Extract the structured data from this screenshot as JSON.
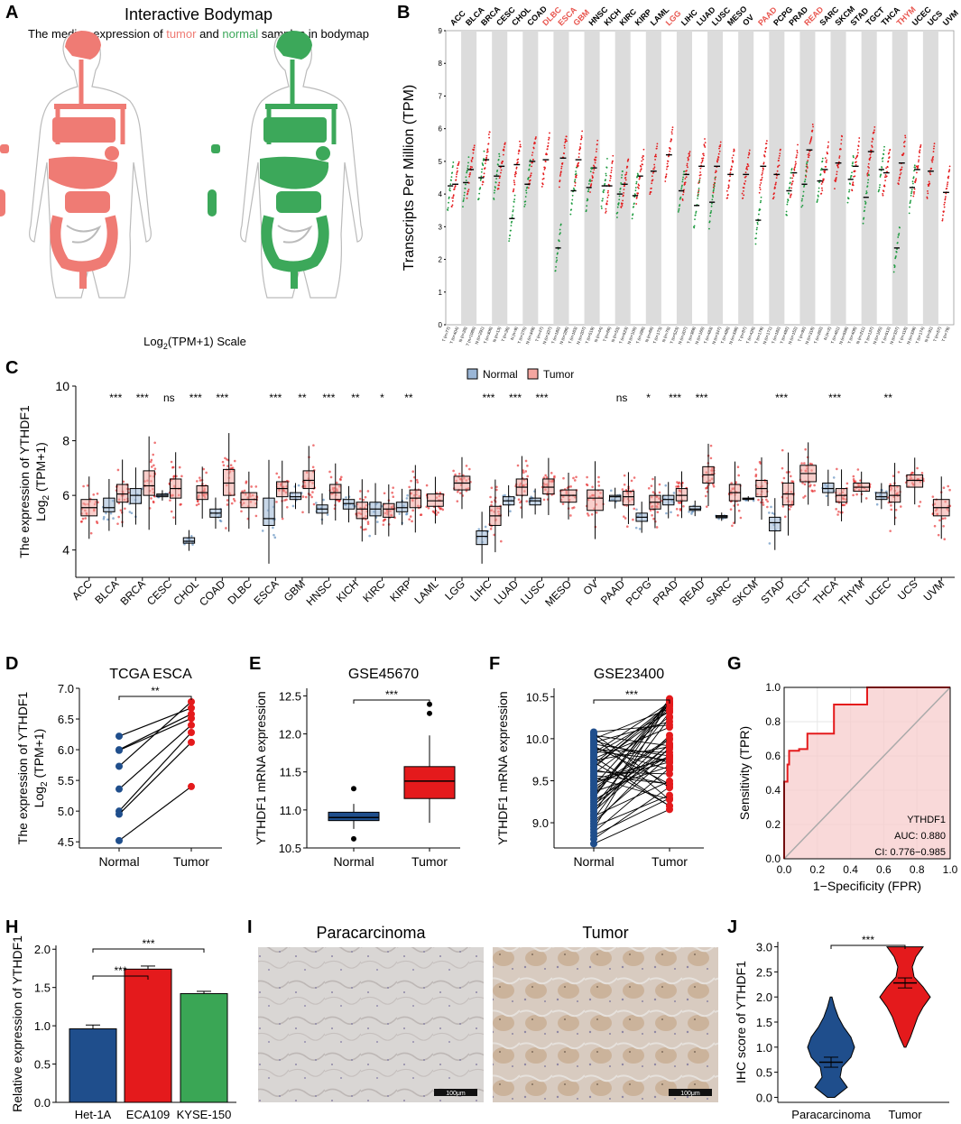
{
  "figure": {
    "panel_labels": [
      "A",
      "B",
      "C",
      "D",
      "E",
      "F",
      "G",
      "H",
      "I",
      "J"
    ]
  },
  "colors": {
    "normal": "#1f4e8c",
    "tumor": "#e41a1c",
    "green": "#3aa655",
    "body_red": "#ef7b74",
    "body_green": "#3ca85a",
    "grey": "#d9d9d9"
  },
  "bodymap": {
    "title": "Interactive Bodymap",
    "subtitle_parts": [
      "The median expression of ",
      "tumor",
      " and ",
      "normal",
      " samples in bodymap"
    ],
    "scale_label_main": "Log",
    "scale_label_sub": "2",
    "scale_label_rest": "(TPM+1) Scale"
  },
  "chart_data": [
    {
      "id": "B",
      "type": "scatter",
      "title": "",
      "ylabel": "Transcripts Per Million (TPM)",
      "ylim": [
        0,
        9
      ],
      "yticks": [
        0,
        1,
        2,
        3,
        4,
        5,
        6,
        7,
        8,
        9
      ],
      "cancers": [
        "ACC",
        "BLCA",
        "BRCA",
        "CESC",
        "CHOL",
        "COAD",
        "DLBC",
        "ESCA",
        "GBM",
        "HNSC",
        "KICH",
        "KIRC",
        "KIRP",
        "LAML",
        "LGG",
        "LIHC",
        "LUAD",
        "LUSC",
        "MESO",
        "OV",
        "PAAD",
        "PCPG",
        "PRAD",
        "READ",
        "SARC",
        "SKCM",
        "STAD",
        "TGCT",
        "THCA",
        "THYM",
        "UCEC",
        "UCS",
        "UVM"
      ],
      "highlighted": [
        "DLBC",
        "ESCA",
        "GBM",
        "LGG",
        "PAAD",
        "READ",
        "THYM"
      ],
      "tumor_median": [
        4.3,
        4.75,
        5.05,
        4.85,
        4.9,
        5.0,
        5.05,
        5.1,
        5.05,
        4.8,
        4.25,
        4.3,
        4.55,
        4.7,
        5.2,
        4.6,
        4.85,
        4.85,
        4.6,
        4.6,
        4.85,
        4.6,
        4.65,
        5.35,
        4.75,
        4.95,
        4.85,
        5.3,
        4.65,
        4.95,
        4.75,
        4.7,
        4.05
      ],
      "normal_median": [
        4.25,
        4.35,
        4.5,
        4.55,
        3.25,
        4.3,
        null,
        2.35,
        4.1,
        4.2,
        4.25,
        4.0,
        3.95,
        null,
        null,
        4.1,
        3.65,
        3.75,
        null,
        null,
        3.2,
        null,
        4.1,
        4.3,
        4.4,
        null,
        4.45,
        3.9,
        4.75,
        2.35,
        4.2,
        null,
        null
      ],
      "xtick_counts": [
        "T (n=77)",
        "T (n=404)",
        "N (n=28)",
        "T (n=1085)",
        "N (n=291)",
        "T (n=306)",
        "N (n=13)",
        "T (n=36)",
        "N (n=9)",
        "T (n=275)",
        "N (n=349)",
        "T (n=47)",
        "N (n=337)",
        "T (n=182)",
        "N (n=286)",
        "T (n=163)",
        "N (n=207)",
        "T (n=519)",
        "N (n=44)",
        "T (n=66)",
        "N (n=53)",
        "T (n=523)",
        "N (n=100)",
        "T (n=286)",
        "N (n=60)",
        "T (n=173)",
        "N (n=70)",
        "T (n=523)",
        "N (n=207)",
        "T (n=369)",
        "N (n=160)",
        "T (n=483)",
        "N (n=347)",
        "T (n=486)",
        "N (n=338)",
        "T (n=87)",
        "T (n=426)",
        "T (n=179)",
        "N (n=171)",
        "T (n=182)",
        "T (n=492)",
        "N (n=152)",
        "T (n=92)",
        "N (n=318)",
        "T (n=262)",
        "N (n=2)",
        "T (n=461)",
        "N (n=558)",
        "T (n=408)",
        "N (n=211)",
        "T (n=137)",
        "N (n=165)",
        "T (n=512)",
        "N (n=337)",
        "T (n=118)",
        "N (n=339)",
        "T (n=174)",
        "N (n=91)",
        "T (n=57)",
        "T (n=79)"
      ]
    },
    {
      "id": "C",
      "type": "box",
      "ylabel_line1": "The expression of YTHDF1",
      "ylabel_line2_main": "Log",
      "ylabel_line2_sub": "2",
      "ylabel_line2_rest": " (TPM+1)",
      "legend": [
        "Normal",
        "Tumor"
      ],
      "ylim": [
        3,
        10
      ],
      "yticks": [
        4,
        6,
        8,
        10
      ],
      "categories": [
        "ACC",
        "BLCA",
        "BRCA",
        "CESC",
        "CHOL",
        "COAD",
        "DLBC",
        "ESCA",
        "GBM",
        "HNSC",
        "KICH",
        "KIRC",
        "KIRP",
        "LAML",
        "LGG",
        "LIHC",
        "LUAD",
        "LUSC",
        "MESO",
        "OV",
        "PAAD",
        "PCPG",
        "PRAD",
        "READ",
        "SARC",
        "SKCM",
        "STAD",
        "TGCT",
        "THCA",
        "THYM",
        "UCEC",
        "UCS",
        "UVM"
      ],
      "significance": [
        "",
        "***",
        "***",
        "ns",
        "***",
        "***",
        "",
        "***",
        "**",
        "***",
        "**",
        "*",
        "**",
        "",
        "",
        "***",
        "***",
        "***",
        "",
        "",
        "ns",
        "*",
        "***",
        "***",
        "",
        "",
        "***",
        "",
        "***",
        "",
        "**",
        "",
        ""
      ],
      "normal_box": [
        null,
        [
          5.4,
          5.55,
          5.9
        ],
        [
          5.7,
          6.0,
          6.25
        ],
        [
          5.95,
          6.0,
          6.05
        ],
        [
          4.25,
          4.32,
          4.45
        ],
        [
          5.2,
          5.35,
          5.5
        ],
        null,
        [
          4.9,
          5.15,
          5.9
        ],
        [
          5.85,
          5.95,
          6.1
        ],
        [
          5.35,
          5.5,
          5.65
        ],
        [
          5.5,
          5.7,
          5.85
        ],
        [
          5.25,
          5.5,
          5.75
        ],
        [
          5.4,
          5.55,
          5.75
        ],
        null,
        null,
        [
          4.2,
          4.5,
          4.7
        ],
        [
          5.65,
          5.8,
          5.95
        ],
        [
          5.65,
          5.8,
          5.9
        ],
        null,
        null,
        [
          5.8,
          5.95,
          6.0
        ],
        [
          5.05,
          5.2,
          5.35
        ],
        [
          5.65,
          5.85,
          6.0
        ],
        [
          5.45,
          5.5,
          5.6
        ],
        [
          5.18,
          5.22,
          5.26
        ],
        [
          5.85,
          5.88,
          5.9
        ],
        [
          4.7,
          5.0,
          5.2
        ],
        null,
        [
          6.1,
          6.25,
          6.45
        ],
        null,
        [
          5.85,
          5.95,
          6.1
        ],
        null,
        null
      ],
      "tumor_box": [
        [
          5.25,
          5.55,
          5.85
        ],
        [
          5.75,
          6.05,
          6.4
        ],
        [
          6.0,
          6.35,
          6.9
        ],
        [
          5.9,
          6.25,
          6.6
        ],
        [
          5.85,
          6.1,
          6.35
        ],
        [
          6.0,
          6.45,
          6.95
        ],
        [
          5.55,
          5.85,
          6.1
        ],
        [
          5.95,
          6.25,
          6.5
        ],
        [
          6.25,
          6.55,
          6.9
        ],
        [
          5.85,
          6.1,
          6.4
        ],
        [
          5.15,
          5.5,
          5.75
        ],
        [
          5.2,
          5.5,
          5.7
        ],
        [
          5.55,
          5.9,
          6.2
        ],
        [
          5.6,
          5.8,
          6.05
        ],
        [
          6.2,
          6.45,
          6.7
        ],
        [
          4.9,
          5.25,
          5.6
        ],
        [
          6.0,
          6.3,
          6.6
        ],
        [
          6.05,
          6.3,
          6.6
        ],
        [
          5.75,
          6.0,
          6.2
        ],
        [
          5.45,
          5.9,
          6.2
        ],
        [
          5.65,
          5.95,
          6.15
        ],
        [
          5.5,
          5.75,
          6.0
        ],
        [
          5.8,
          6.0,
          6.25
        ],
        [
          6.45,
          6.75,
          7.05
        ],
        [
          5.8,
          6.1,
          6.4
        ],
        [
          5.95,
          6.25,
          6.55
        ],
        [
          5.65,
          6.05,
          6.45
        ],
        [
          6.5,
          6.8,
          7.1
        ],
        [
          5.75,
          6.0,
          6.25
        ],
        [
          6.15,
          6.3,
          6.45
        ],
        [
          5.75,
          6.0,
          6.35
        ],
        [
          6.3,
          6.55,
          6.75
        ],
        [
          5.25,
          5.55,
          5.85
        ]
      ]
    },
    {
      "id": "D",
      "type": "line",
      "title": "TCGA ESCA",
      "ylabel_line1": "The expression of YTHDF1",
      "ylabel_line2_main": "Log",
      "ylabel_line2_sub": "2",
      "ylabel_line2_rest": " (TPM+1)",
      "categories": [
        "Normal",
        "Tumor"
      ],
      "ylim": [
        4.4,
        7.0
      ],
      "yticks": [
        "4.5",
        "5.0",
        "5.5",
        "6.0",
        "6.5",
        "7.0"
      ],
      "ytick_values": [
        4.5,
        5.0,
        5.5,
        6.0,
        6.5,
        7.0
      ],
      "significance": "**",
      "pairs": [
        [
          6.22,
          6.68
        ],
        [
          6.0,
          6.58
        ],
        [
          5.99,
          6.51
        ],
        [
          5.73,
          6.78
        ],
        [
          5.36,
          6.4
        ],
        [
          5.0,
          6.28
        ],
        [
          4.95,
          6.12
        ],
        [
          4.52,
          5.4
        ]
      ]
    },
    {
      "id": "E",
      "type": "box",
      "title": "GSE45670",
      "ylabel": "YTHDF1 mRNA expression",
      "categories": [
        "Normal",
        "Tumor"
      ],
      "ylim": [
        10.5,
        12.6
      ],
      "yticks": [
        "10.5",
        "11.0",
        "11.5",
        "12.0",
        "12.5"
      ],
      "ytick_values": [
        10.5,
        11.0,
        11.5,
        12.0,
        12.5
      ],
      "significance": "***",
      "boxes": [
        {
          "q1": 10.86,
          "median": 10.9,
          "q3": 10.97,
          "whisker_low": 10.75,
          "whisker_high": 11.08,
          "outliers": [
            10.62,
            11.28
          ]
        },
        {
          "q1": 11.15,
          "median": 11.38,
          "q3": 11.57,
          "whisker_low": 10.83,
          "whisker_high": 11.98,
          "outliers": [
            12.27,
            12.39
          ]
        }
      ]
    },
    {
      "id": "F",
      "type": "line",
      "title": "GSE23400",
      "ylabel": "YTHDF1 mRNA expression",
      "categories": [
        "Normal",
        "Tumor"
      ],
      "ylim": [
        8.7,
        10.6
      ],
      "yticks": [
        "9.0",
        "9.5",
        "10.0",
        "10.5"
      ],
      "ytick_values": [
        9.0,
        9.5,
        10.0,
        10.5
      ],
      "significance": "***",
      "normal_range": [
        8.75,
        10.08
      ],
      "tumor_range": [
        9.15,
        10.5
      ],
      "n_pairs": 53
    },
    {
      "id": "G",
      "type": "line",
      "title": "",
      "xlabel": "1−Specificity (FPR)",
      "ylabel": "Sensitivity (TPR)",
      "xlim": [
        0,
        1
      ],
      "ylim": [
        0,
        1
      ],
      "ticks": [
        "0.0",
        "0.2",
        "0.4",
        "0.6",
        "0.8",
        "1.0"
      ],
      "tick_values": [
        0.0,
        0.2,
        0.4,
        0.6,
        0.8,
        1.0
      ],
      "roc": [
        [
          0,
          0
        ],
        [
          0,
          0.45
        ],
        [
          0.02,
          0.45
        ],
        [
          0.02,
          0.55
        ],
        [
          0.03,
          0.55
        ],
        [
          0.03,
          0.63
        ],
        [
          0.09,
          0.63
        ],
        [
          0.09,
          0.64
        ],
        [
          0.14,
          0.64
        ],
        [
          0.14,
          0.73
        ],
        [
          0.3,
          0.73
        ],
        [
          0.3,
          0.9
        ],
        [
          0.5,
          0.9
        ],
        [
          0.5,
          1.0
        ],
        [
          1.0,
          1.0
        ]
      ],
      "annotation": [
        "YTHDF1",
        "AUC: 0.880",
        "CI: 0.776−0.985"
      ]
    },
    {
      "id": "H",
      "type": "bar",
      "ylabel": "Relative expression of YTHDF1",
      "categories": [
        "Het-1A",
        "ECA109",
        "KYSE-150"
      ],
      "values": [
        0.96,
        1.74,
        1.42
      ],
      "errors": [
        0.05,
        0.04,
        0.03
      ],
      "ylim": [
        0,
        2.05
      ],
      "yticks": [
        "0.0",
        "0.5",
        "1.0",
        "1.5",
        "2.0"
      ],
      "ytick_values": [
        0.0,
        0.5,
        1.0,
        1.5,
        2.0
      ],
      "comparisons": [
        {
          "from": 0,
          "to": 1,
          "label": "***"
        },
        {
          "from": 0,
          "to": 2,
          "label": "***"
        }
      ]
    },
    {
      "id": "J",
      "type": "violin",
      "ylabel": "IHC score of YTHDF1",
      "categories": [
        "Paracarcinoma",
        "Tumor"
      ],
      "ylim": [
        -0.1,
        3.1
      ],
      "yticks": [
        "0.0",
        "0.5",
        "1.0",
        "1.5",
        "2.0",
        "2.5",
        "3.0"
      ],
      "ytick_values": [
        0.0,
        0.5,
        1.0,
        1.5,
        2.0,
        2.5,
        3.0
      ],
      "means": [
        0.7,
        2.28
      ],
      "sem": [
        0.1,
        0.1
      ],
      "ranges": [
        [
          0.0,
          2.0
        ],
        [
          1.0,
          3.0
        ]
      ],
      "significance": "***"
    }
  ],
  "ihc": {
    "left_title": "Paracarcinoma",
    "right_title": "Tumor",
    "scale_bar": "100μm"
  }
}
